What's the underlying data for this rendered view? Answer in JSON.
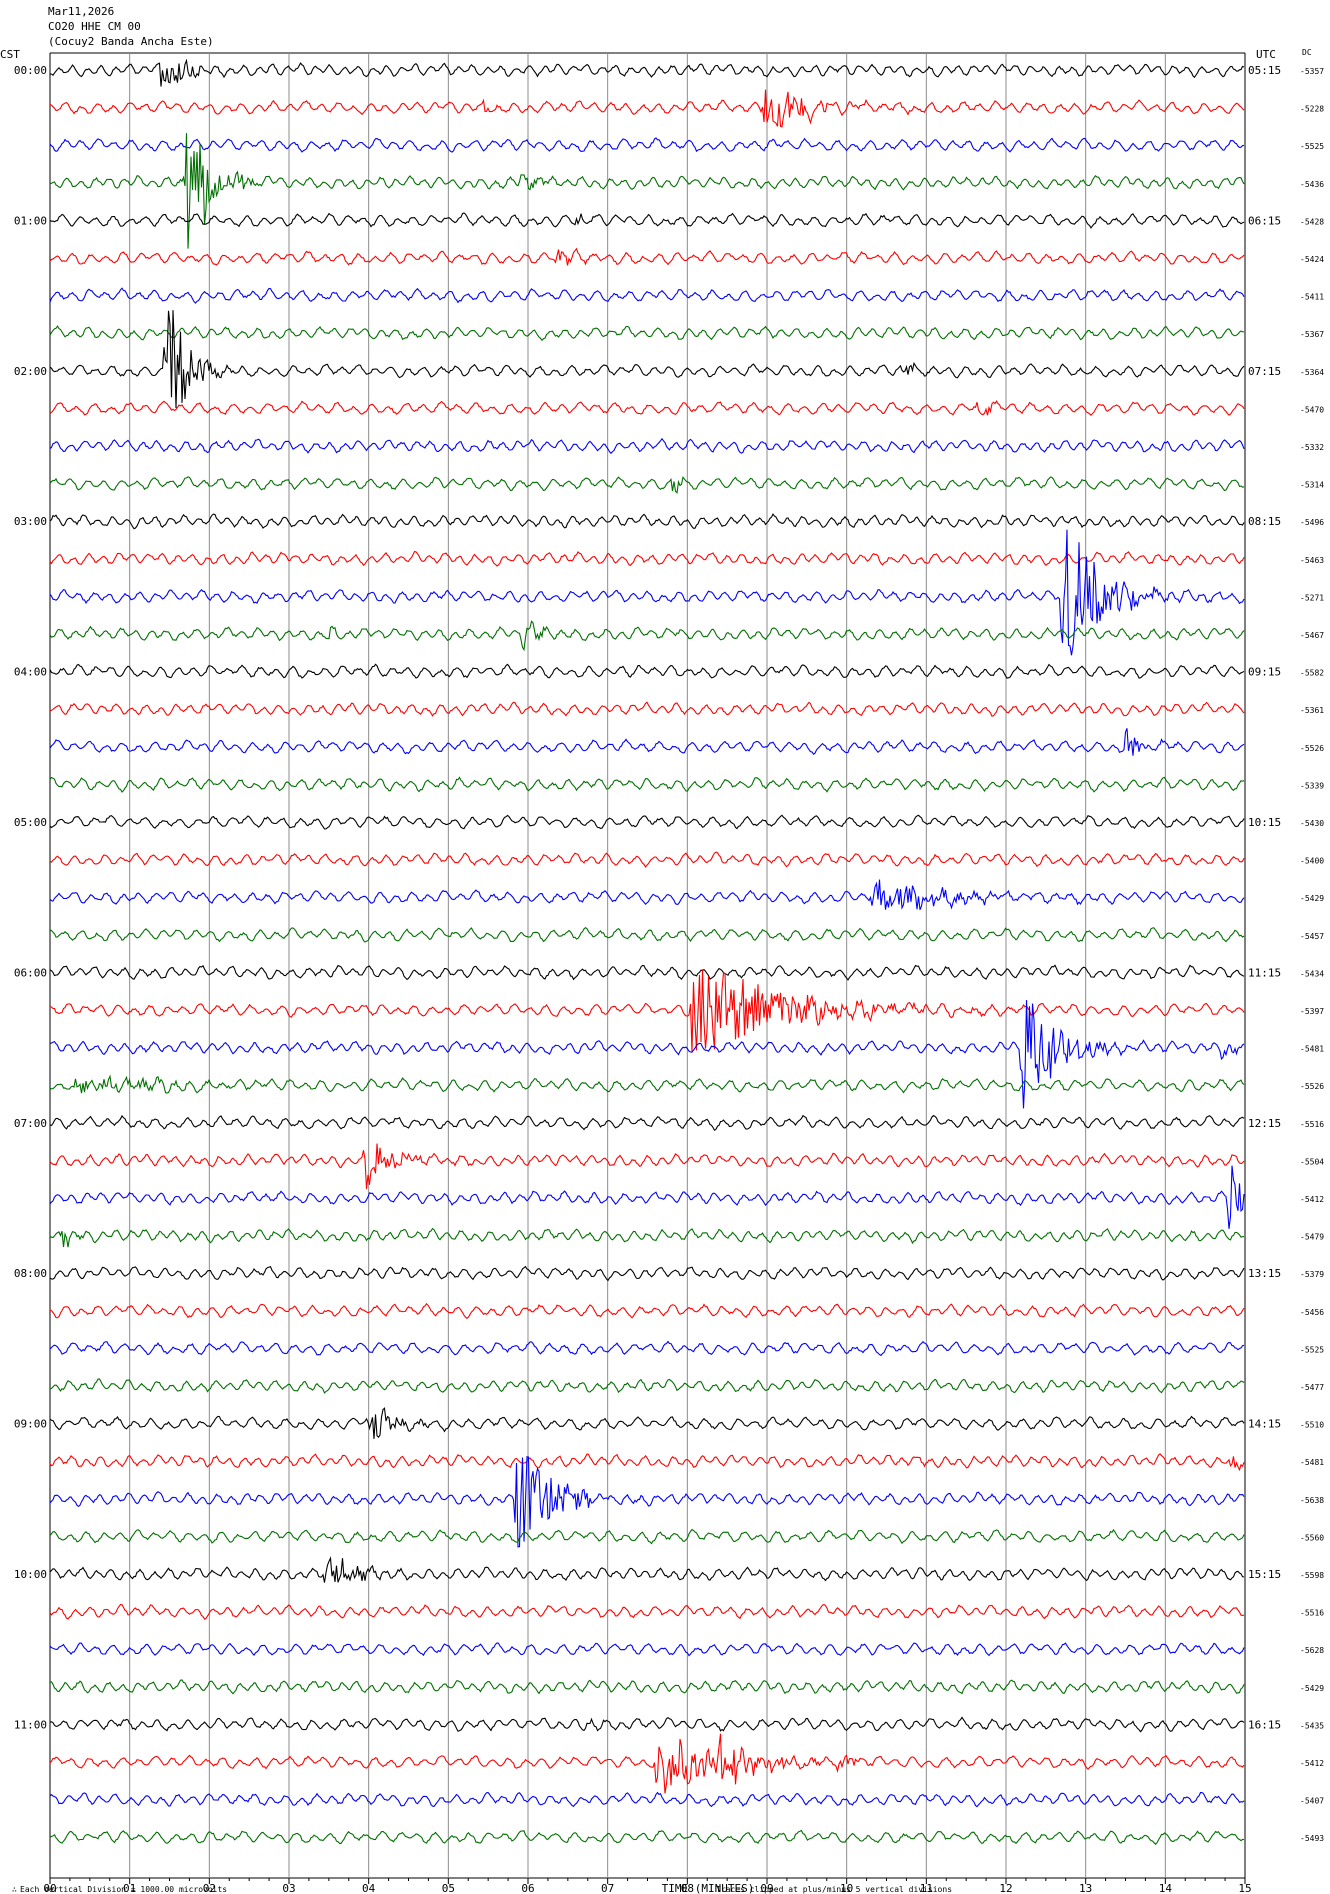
{
  "header": {
    "date": "Mar11,2026",
    "station": "CO20 HHE CM 00",
    "location": "(Cocuy2 Banda Ancha Este)"
  },
  "labels": {
    "left_tz": "CST",
    "right_tz": "UTC",
    "dc": "DC",
    "xlabel": "TIME (MINUTES)",
    "footer_left": "Each Vertical Division = 1000.00 microvolts",
    "footer_right": "Traces clipped at plus/minus 5 vertical divisions"
  },
  "colors": {
    "cycle": [
      "#000000",
      "#ff0000",
      "#0000ff",
      "#007000"
    ],
    "grid": "#8c8c8c"
  },
  "chart_data": {
    "type": "line",
    "subtype": "helicorder",
    "x_range": [
      0,
      15
    ],
    "x_ticks": [
      "00",
      "01",
      "02",
      "03",
      "04",
      "05",
      "06",
      "07",
      "08",
      "09",
      "10",
      "11",
      "12",
      "13",
      "14",
      "15"
    ],
    "rows_per_hour": 4,
    "left_hour_labels": [
      "00:00",
      "01:00",
      "02:00",
      "03:00",
      "04:00",
      "05:00",
      "06:00",
      "07:00",
      "08:00",
      "09:00",
      "10:00",
      "11:00"
    ],
    "right_hour_labels": [
      "05:15",
      "06:15",
      "07:15",
      "08:15",
      "09:15",
      "10:15",
      "11:15",
      "12:15",
      "13:15",
      "14:15",
      "15:15",
      "16:15"
    ],
    "dc_offsets": [
      "-5357",
      "-5228",
      "-5525",
      "-5436",
      "-5428",
      "-5424",
      "-5411",
      "-5367",
      "-5364",
      "-5470",
      "-5332",
      "-5314",
      "-5496",
      "-5463",
      "-5271",
      "-5467",
      "-5582",
      "-5361",
      "-5526",
      "-5339",
      "-5430",
      "-5400",
      "-5429",
      "-5457",
      "-5434",
      "-5397",
      "-5481",
      "-5526",
      "-5516",
      "-5504",
      "-5412",
      "-5479",
      "-5379",
      "-5456",
      "-5525",
      "-5477",
      "-5510",
      "-5481",
      "-5638",
      "-5560",
      "-5598",
      "-5516",
      "-5628",
      "-5429",
      "-5435",
      "-5412",
      "-5407",
      "-5493"
    ],
    "events": [
      {
        "row": 0,
        "t": 1.4,
        "amp": 2.0,
        "dur": 0.4
      },
      {
        "row": 1,
        "t": 8.95,
        "amp": 1.5,
        "dur": 0.9
      },
      {
        "row": 1,
        "t": 5.45,
        "amp": 0.4,
        "dur": 0.2
      },
      {
        "row": 3,
        "t": 1.7,
        "amp": 5.0,
        "dur": 0.5
      },
      {
        "row": 3,
        "t": 5.9,
        "amp": 0.5,
        "dur": 0.4
      },
      {
        "row": 4,
        "t": 6.6,
        "amp": 0.4,
        "dur": 0.3
      },
      {
        "row": 5,
        "t": 6.35,
        "amp": 0.8,
        "dur": 0.3
      },
      {
        "row": 8,
        "t": 1.45,
        "amp": 5.0,
        "dur": 0.4
      },
      {
        "row": 8,
        "t": 10.7,
        "amp": 0.4,
        "dur": 0.3
      },
      {
        "row": 9,
        "t": 11.65,
        "amp": 0.7,
        "dur": 0.2
      },
      {
        "row": 11,
        "t": 7.8,
        "amp": 0.5,
        "dur": 0.4
      },
      {
        "row": 14,
        "t": 12.7,
        "amp": 4.5,
        "dur": 0.8
      },
      {
        "row": 15,
        "t": 5.9,
        "amp": 0.8,
        "dur": 0.4
      },
      {
        "row": 15,
        "t": 3.5,
        "amp": 0.4,
        "dur": 0.2
      },
      {
        "row": 18,
        "t": 13.5,
        "amp": 1.2,
        "dur": 0.3
      },
      {
        "row": 22,
        "t": 10.3,
        "amp": 0.9,
        "dur": 1.5
      },
      {
        "row": 25,
        "t": 8.05,
        "amp": 3.0,
        "dur": 1.8
      },
      {
        "row": 26,
        "t": 12.2,
        "amp": 3.6,
        "dur": 0.7
      },
      {
        "row": 26,
        "t": 14.7,
        "amp": 0.5,
        "dur": 0.3
      },
      {
        "row": 27,
        "t": 0.3,
        "amp": 0.5,
        "dur": 1.8
      },
      {
        "row": 29,
        "t": 3.95,
        "amp": 1.4,
        "dur": 0.6
      },
      {
        "row": 30,
        "t": 14.8,
        "amp": 2.6,
        "dur": 0.2
      },
      {
        "row": 31,
        "t": 0.15,
        "amp": 0.5,
        "dur": 0.3
      },
      {
        "row": 36,
        "t": 4.0,
        "amp": 1.2,
        "dur": 0.5
      },
      {
        "row": 37,
        "t": 14.8,
        "amp": 0.6,
        "dur": 0.2
      },
      {
        "row": 37,
        "t": 10.8,
        "amp": 0.4,
        "dur": 0.2
      },
      {
        "row": 38,
        "t": 5.85,
        "amp": 3.5,
        "dur": 0.7
      },
      {
        "row": 40,
        "t": 3.45,
        "amp": 1.3,
        "dur": 0.5
      },
      {
        "row": 44,
        "t": 6.75,
        "amp": 0.4,
        "dur": 0.2
      },
      {
        "row": 45,
        "t": 7.6,
        "amp": 2.0,
        "dur": 1.3
      },
      {
        "row": 45,
        "t": 8.3,
        "amp": 1.5,
        "dur": 0.8
      },
      {
        "row": 45,
        "t": 9.9,
        "amp": 0.5,
        "dur": 0.3
      }
    ]
  }
}
